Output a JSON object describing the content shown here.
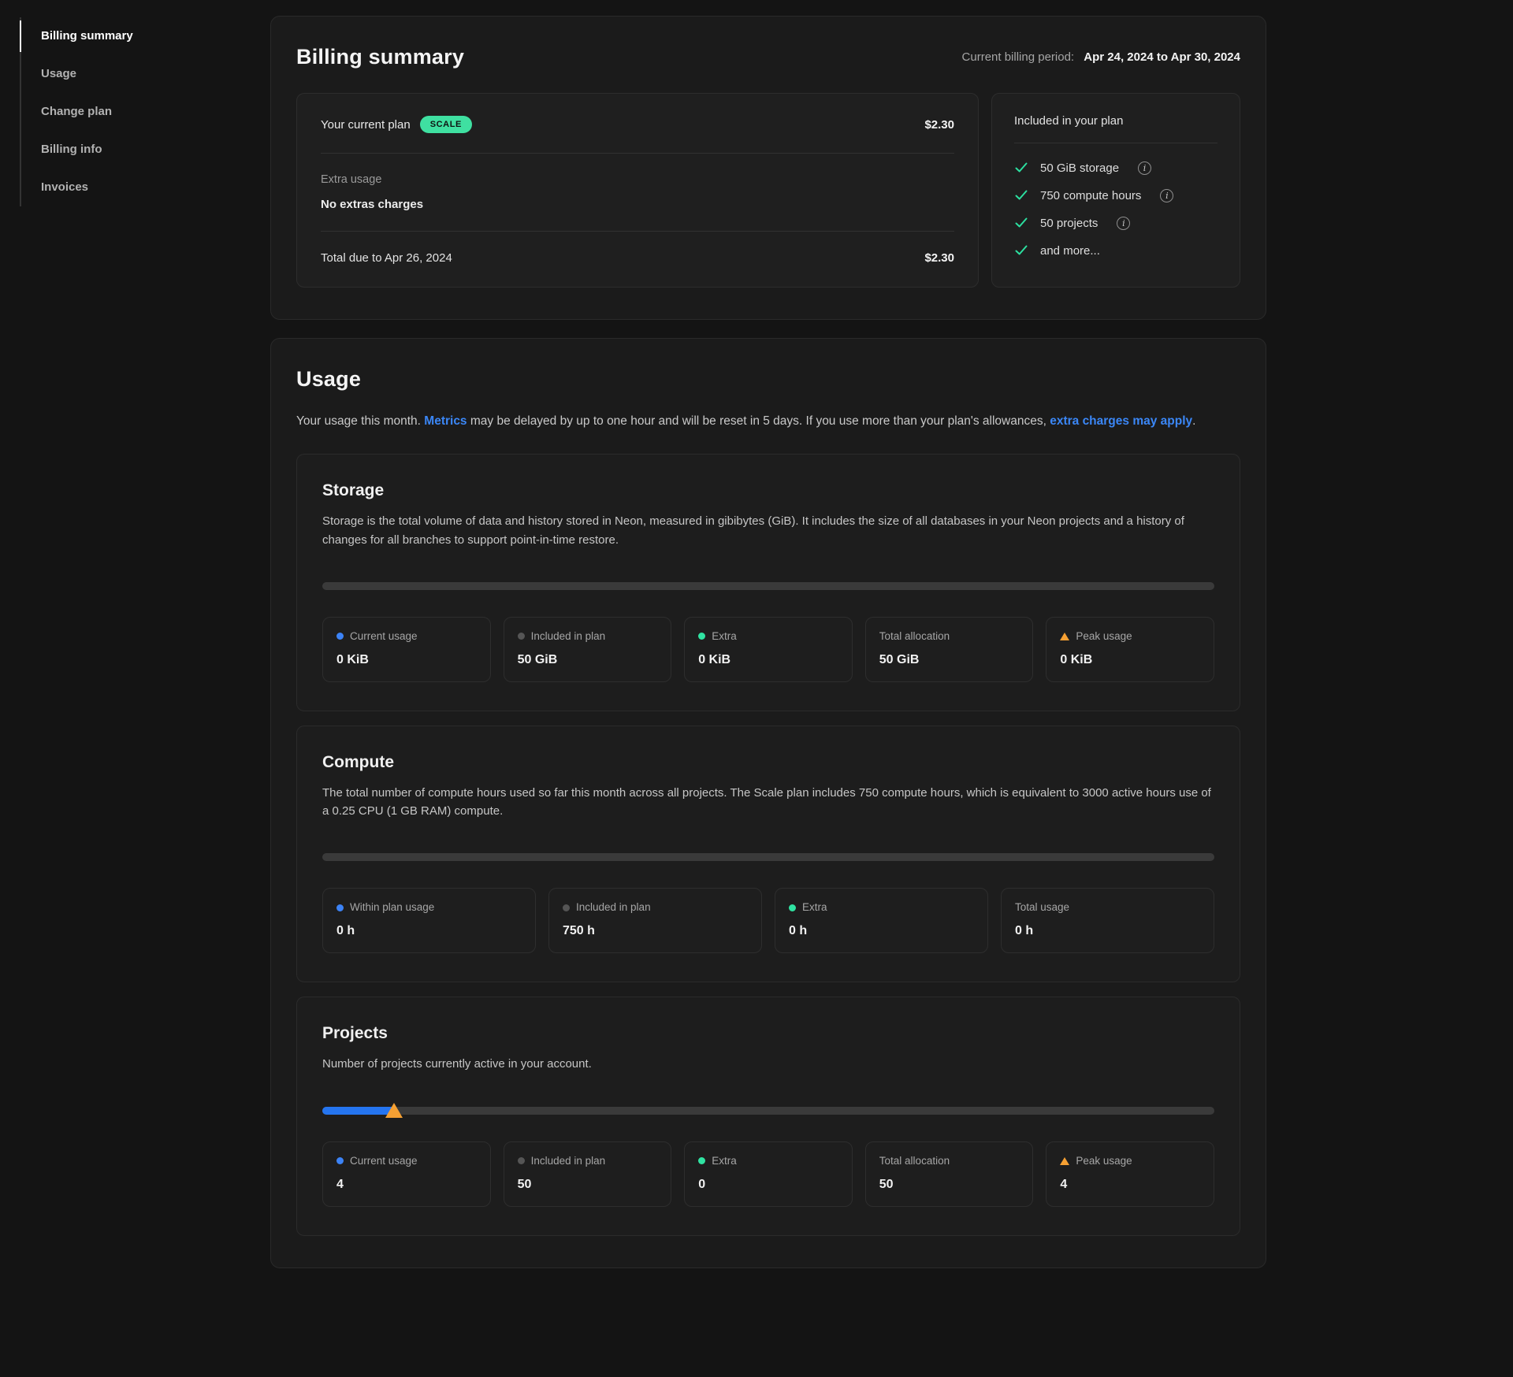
{
  "sidebar": {
    "items": [
      {
        "label": "Billing summary",
        "active": true
      },
      {
        "label": "Usage",
        "active": false
      },
      {
        "label": "Change plan",
        "active": false
      },
      {
        "label": "Billing info",
        "active": false
      },
      {
        "label": "Invoices",
        "active": false
      }
    ]
  },
  "billing_summary": {
    "title": "Billing summary",
    "period_label": "Current billing period:",
    "period_value": "Apr 24, 2024 to Apr 30, 2024",
    "plan_card": {
      "current_plan_label": "Your current plan",
      "plan_badge": "SCALE",
      "plan_price": "$2.30",
      "extra_usage_label": "Extra usage",
      "extra_usage_value": "No extras charges",
      "total_label": "Total due to Apr 26, 2024",
      "total_value": "$2.30"
    },
    "included_card": {
      "title": "Included in your plan",
      "items": [
        {
          "label": "50 GiB storage",
          "info": true
        },
        {
          "label": "750 compute hours",
          "info": true
        },
        {
          "label": "50 projects",
          "info": true
        },
        {
          "label": "and more...",
          "info": false
        }
      ]
    }
  },
  "usage": {
    "title": "Usage",
    "intro": {
      "part1": "Your usage this month. ",
      "link1": "Metrics",
      "part2": " may be delayed by up to one hour and will be reset in 5 days. If you use more than your plan's allowances, ",
      "link2": "extra charges may apply",
      "part3": "."
    },
    "sections": [
      {
        "id": "storage",
        "title": "Storage",
        "description": "Storage is the total volume of data and history stored in Neon, measured in gibibytes (GiB). It includes the size of all databases in your Neon projects and a history of changes for all branches to support point-in-time restore.",
        "progress": {
          "fill_percent": 0,
          "marker_percent": null
        },
        "stats": [
          {
            "label": "Current usage",
            "value": "0 KiB",
            "indicator": "blue-dot"
          },
          {
            "label": "Included in plan",
            "value": "50 GiB",
            "indicator": "gray-dot"
          },
          {
            "label": "Extra",
            "value": "0 KiB",
            "indicator": "green-dot"
          },
          {
            "label": "Total allocation",
            "value": "50 GiB",
            "indicator": "none"
          },
          {
            "label": "Peak usage",
            "value": "0 KiB",
            "indicator": "orange-triangle"
          }
        ]
      },
      {
        "id": "compute",
        "title": "Compute",
        "description": "The total number of compute hours used so far this month across all projects. The Scale plan includes 750 compute hours, which is equivalent to 3000 active hours use of a 0.25 CPU (1 GB RAM) compute.",
        "progress": {
          "fill_percent": 0,
          "marker_percent": null
        },
        "stats": [
          {
            "label": "Within plan usage",
            "value": "0 h",
            "indicator": "blue-dot"
          },
          {
            "label": "Included in plan",
            "value": "750 h",
            "indicator": "gray-dot"
          },
          {
            "label": "Extra",
            "value": "0 h",
            "indicator": "green-dot"
          },
          {
            "label": "Total usage",
            "value": "0 h",
            "indicator": "none"
          }
        ]
      },
      {
        "id": "projects",
        "title": "Projects",
        "description": "Number of projects currently active in your account.",
        "progress": {
          "fill_percent": 8,
          "marker_percent": 8
        },
        "stats": [
          {
            "label": "Current usage",
            "value": "4",
            "indicator": "blue-dot"
          },
          {
            "label": "Included in plan",
            "value": "50",
            "indicator": "gray-dot"
          },
          {
            "label": "Extra",
            "value": "0",
            "indicator": "green-dot"
          },
          {
            "label": "Total allocation",
            "value": "50",
            "indicator": "none"
          },
          {
            "label": "Peak usage",
            "value": "4",
            "indicator": "orange-triangle"
          }
        ]
      }
    ]
  },
  "colors": {
    "page_background": "#141414",
    "panel_background": "#1b1b1b",
    "badge_green": "#3fe0a1",
    "check_green": "#2ce0a0",
    "link_blue": "#3b87f7",
    "dot_blue": "#3c83f6",
    "dot_gray": "#555555",
    "dot_green": "#30e3a2",
    "marker_orange": "#f5a033",
    "bar_fill_blue": "#2575f0",
    "bar_track": "#3a3a3a"
  }
}
